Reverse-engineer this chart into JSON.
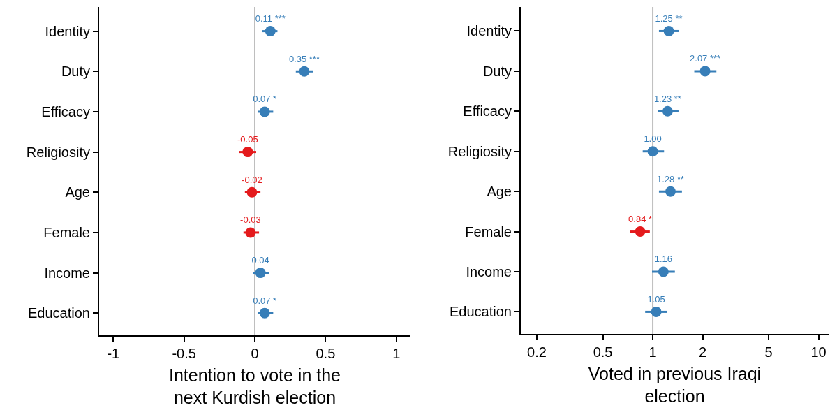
{
  "chart_data": [
    {
      "type": "scatter",
      "orientation": "horizontal",
      "xlabel": "Intention to vote in the\nnext Kurdish election",
      "categories": [
        "Identity",
        "Duty",
        "Efficacy",
        "Religiosity",
        "Age",
        "Female",
        "Income",
        "Education"
      ],
      "values": [
        0.11,
        0.35,
        0.07,
        -0.05,
        -0.02,
        -0.03,
        0.04,
        0.07
      ],
      "errors": [
        [
          0.05,
          0.16
        ],
        [
          0.29,
          0.41
        ],
        [
          0.02,
          0.13
        ],
        [
          -0.11,
          0.01
        ],
        [
          -0.07,
          0.04
        ],
        [
          -0.08,
          0.03
        ],
        [
          -0.01,
          0.1
        ],
        [
          0.02,
          0.13
        ]
      ],
      "colors": [
        "#377eb8",
        "#377eb8",
        "#377eb8",
        "#e41a1c",
        "#e41a1c",
        "#e41a1c",
        "#377eb8",
        "#377eb8"
      ],
      "value_labels": [
        "0.11 ***",
        "0.35 ***",
        "0.07 *",
        "-0.05",
        "-0.02",
        "-0.03",
        "0.04",
        "0.07 *"
      ],
      "xlim": [
        -1.1,
        1.1
      ],
      "xticks": [
        -1,
        -0.5,
        0,
        0.5,
        1
      ],
      "ref_lines": [
        {
          "axis": "x",
          "value": 0,
          "color": "#bebebe"
        }
      ],
      "marker": "circle",
      "grid": false
    },
    {
      "type": "scatter",
      "orientation": "horizontal",
      "xlabel": "Voted in previous Iraqi\nelection",
      "log": "x",
      "categories": [
        "Identity",
        "Duty",
        "Efficacy",
        "Religiosity",
        "Age",
        "Female",
        "Income",
        "Education"
      ],
      "values": [
        1.25,
        2.07,
        1.23,
        1.0,
        1.28,
        0.84,
        1.16,
        1.05
      ],
      "errors": [
        [
          1.09,
          1.44
        ],
        [
          1.78,
          2.42
        ],
        [
          1.07,
          1.43
        ],
        [
          0.87,
          1.17
        ],
        [
          1.09,
          1.5
        ],
        [
          0.73,
          0.96
        ],
        [
          0.99,
          1.36
        ],
        [
          0.9,
          1.22
        ]
      ],
      "colors": [
        "#377eb8",
        "#377eb8",
        "#377eb8",
        "#377eb8",
        "#377eb8",
        "#e41a1c",
        "#377eb8",
        "#377eb8"
      ],
      "value_labels": [
        "1.25 **",
        "2.07 ***",
        "1.23 **",
        "1.00",
        "1.28 **",
        "0.84 *",
        "1.16",
        "1.05"
      ],
      "xlim": [
        0.16,
        11.5
      ],
      "xticks": [
        0.2,
        0.5,
        1,
        2,
        5,
        10
      ],
      "ref_lines": [
        {
          "axis": "x",
          "value": 1,
          "color": "#bebebe"
        }
      ],
      "marker": "circle",
      "grid": false
    }
  ]
}
